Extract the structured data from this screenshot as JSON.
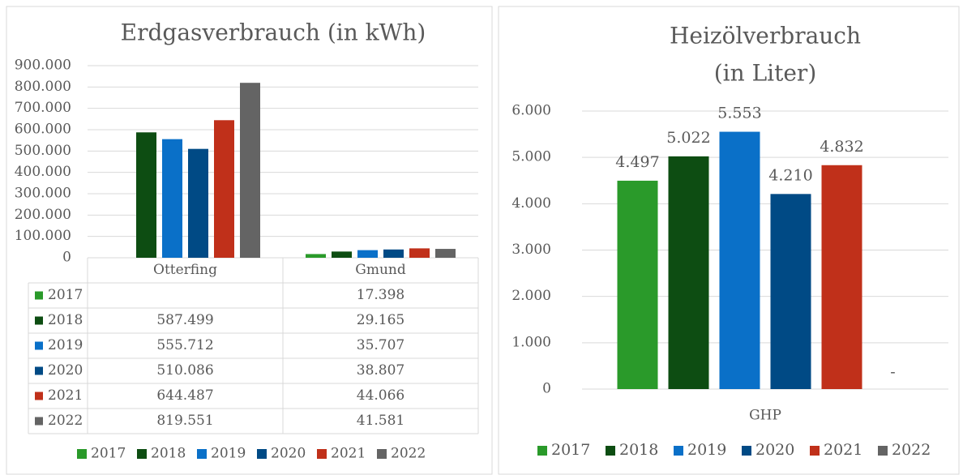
{
  "chart_data": [
    {
      "type": "bar",
      "title": "Erdgasverbrauch (in kWh)",
      "categories": [
        "Otterfing",
        "Gmund"
      ],
      "ylim": [
        0,
        900000
      ],
      "yticks": [
        {
          "value": 0,
          "label": "0"
        },
        {
          "value": 100000,
          "label": "100.000"
        },
        {
          "value": 200000,
          "label": "200.000"
        },
        {
          "value": 300000,
          "label": "300.000"
        },
        {
          "value": 400000,
          "label": "400.000"
        },
        {
          "value": 500000,
          "label": "500.000"
        },
        {
          "value": 600000,
          "label": "600.000"
        },
        {
          "value": 700000,
          "label": "700.000"
        },
        {
          "value": 800000,
          "label": "800.000"
        },
        {
          "value": 900000,
          "label": "900.000"
        }
      ],
      "grid": true,
      "data_table": true,
      "legend": "bottom",
      "series": [
        {
          "name": "2017",
          "color": "#2a9a2a",
          "values": [
            null,
            17398
          ],
          "value_labels": [
            null,
            "17.398"
          ]
        },
        {
          "name": "2018",
          "color": "#0d4d12",
          "values": [
            587499,
            29165
          ],
          "value_labels": [
            "587.499",
            "29.165"
          ]
        },
        {
          "name": "2019",
          "color": "#0a70c8",
          "values": [
            555712,
            35707
          ],
          "value_labels": [
            "555.712",
            "35.707"
          ]
        },
        {
          "name": "2020",
          "color": "#004a85",
          "values": [
            510086,
            38807
          ],
          "value_labels": [
            "510.086",
            "38.807"
          ]
        },
        {
          "name": "2021",
          "color": "#c0301a",
          "values": [
            644487,
            44066
          ],
          "value_labels": [
            "644.487",
            "44.066"
          ]
        },
        {
          "name": "2022",
          "color": "#646464",
          "values": [
            819551,
            41581
          ],
          "value_labels": [
            "819.551",
            "41.581"
          ]
        }
      ]
    },
    {
      "type": "bar",
      "title": [
        "Heizölverbrauch",
        "(in Liter)"
      ],
      "categories": [
        "GHP"
      ],
      "ylim": [
        0,
        6000
      ],
      "yticks": [
        {
          "value": 0,
          "label": "0"
        },
        {
          "value": 1000,
          "label": "1.000"
        },
        {
          "value": 2000,
          "label": "2.000"
        },
        {
          "value": 3000,
          "label": "3.000"
        },
        {
          "value": 4000,
          "label": "4.000"
        },
        {
          "value": 5000,
          "label": "5.000"
        },
        {
          "value": 6000,
          "label": "6.000"
        }
      ],
      "grid": true,
      "data_labels": true,
      "legend": "bottom",
      "series": [
        {
          "name": "2017",
          "color": "#2a9a2a",
          "values": [
            4497
          ],
          "value_labels": [
            "4.497"
          ]
        },
        {
          "name": "2018",
          "color": "#0d4d12",
          "values": [
            5022
          ],
          "value_labels": [
            "5.022"
          ]
        },
        {
          "name": "2019",
          "color": "#0a70c8",
          "values": [
            5553
          ],
          "value_labels": [
            "5.553"
          ]
        },
        {
          "name": "2020",
          "color": "#004a85",
          "values": [
            4210
          ],
          "value_labels": [
            "4.210"
          ]
        },
        {
          "name": "2021",
          "color": "#c0301a",
          "values": [
            4832
          ],
          "value_labels": [
            "4.832"
          ]
        },
        {
          "name": "2022",
          "color": "#646464",
          "values": [
            null
          ],
          "value_labels": [
            "-"
          ]
        }
      ]
    }
  ]
}
